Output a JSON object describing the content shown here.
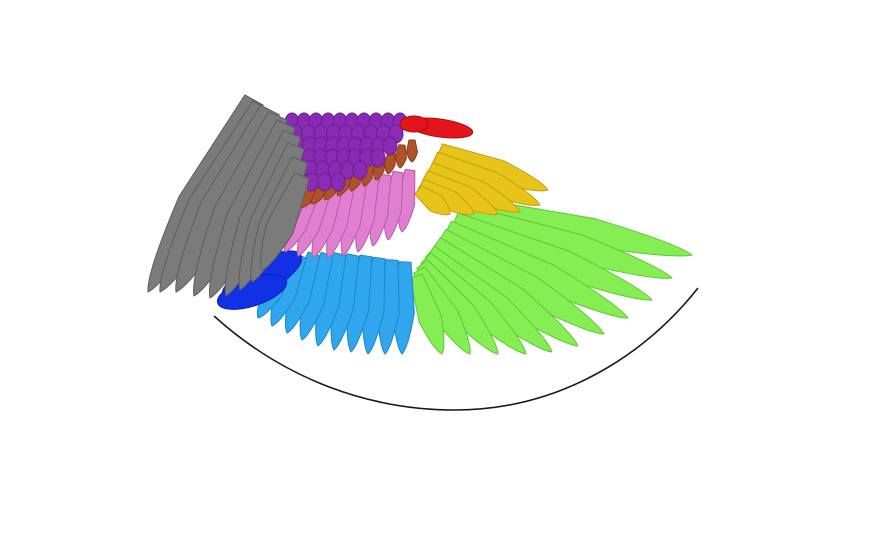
{
  "figure": {
    "subject": "wing-feather-groups",
    "palette": {
      "background": "#ffffff",
      "grey": "#7b7b7b",
      "grey_stroke": "#5d5d5d",
      "purple": "#8a2bb6",
      "purple_stroke": "#6b1f90",
      "red": "#e3141c",
      "brown": "#b0512a",
      "pink": "#e07fd0",
      "pink_stroke": "#b35da6",
      "yellow": "#e8c41a",
      "yellow_stroke": "#c29f10",
      "blue_dark": "#1230e6",
      "blue_light": "#2fa6ee",
      "blue_light_stroke": "#1f86c6",
      "green": "#84ee52",
      "green_stroke": "#5fc736",
      "outline": "#1a1a1a"
    },
    "regions": [
      {
        "id": "alula-scapular",
        "color_key": "grey"
      },
      {
        "id": "lesser-coverts",
        "color_key": "purple"
      },
      {
        "id": "leading-edge",
        "color_key": "red"
      },
      {
        "id": "median-coverts",
        "color_key": "brown"
      },
      {
        "id": "greater-secondary-coverts",
        "color_key": "pink"
      },
      {
        "id": "primary-coverts",
        "color_key": "yellow"
      },
      {
        "id": "tertials",
        "color_key": "blue_dark"
      },
      {
        "id": "secondaries",
        "color_key": "blue_light"
      },
      {
        "id": "primaries",
        "color_key": "green"
      }
    ]
  }
}
